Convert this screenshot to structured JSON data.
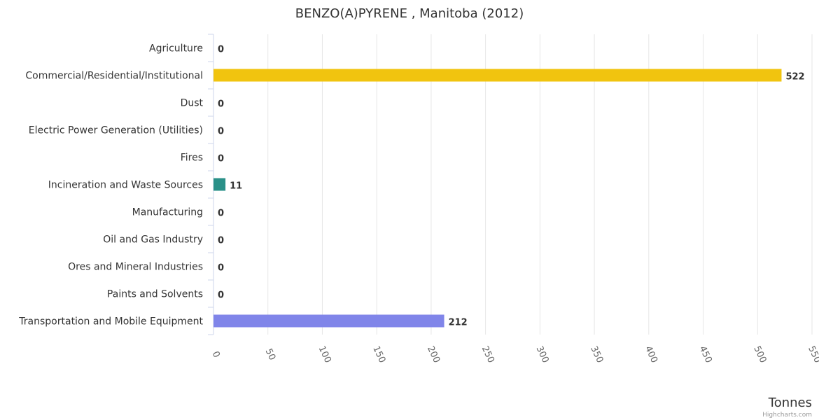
{
  "chart_data": {
    "type": "bar",
    "orientation": "horizontal",
    "title": "BENZO(A)PYRENE , Manitoba (2012)",
    "categories": [
      "Agriculture",
      "Commercial/Residential/Institutional",
      "Dust",
      "Electric Power Generation (Utilities)",
      "Fires",
      "Incineration and Waste Sources",
      "Manufacturing",
      "Oil and Gas Industry",
      "Ores and Mineral Industries",
      "Paints and Solvents",
      "Transportation and Mobile Equipment"
    ],
    "values": [
      0,
      522,
      0,
      0,
      0,
      11,
      0,
      0,
      0,
      0,
      212
    ],
    "data_labels": [
      "0",
      "522",
      "0",
      "0",
      "0",
      "11",
      "0",
      "0",
      "0",
      "0",
      "212"
    ],
    "bar_colors": [
      "#7cb5ec",
      "#f1c40f",
      "#7cb5ec",
      "#7cb5ec",
      "#7cb5ec",
      "#2a9088",
      "#7cb5ec",
      "#7cb5ec",
      "#7cb5ec",
      "#7cb5ec",
      "#8085e9"
    ],
    "xlabel": "Tonnes",
    "ylabel": "",
    "xlim": [
      0,
      550
    ],
    "ticks": [
      0,
      50,
      100,
      150,
      200,
      250,
      300,
      350,
      400,
      450,
      500,
      550
    ],
    "tick_labels": [
      "0",
      "50",
      "100",
      "150",
      "200",
      "250",
      "300",
      "350",
      "400",
      "450",
      "500",
      "550"
    ],
    "grid": true,
    "legend": "none"
  },
  "credits": "Highcharts.com"
}
